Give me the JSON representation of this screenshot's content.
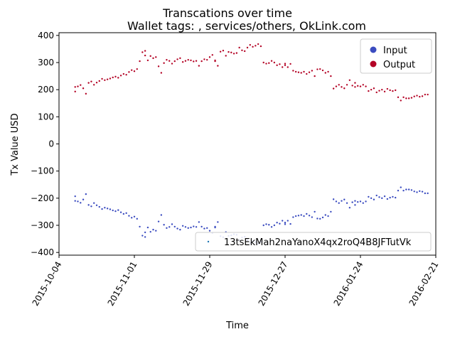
{
  "chart_data": {
    "type": "scatter",
    "title": "Transcations over time",
    "subtitle": "Wallet tags: , services/others, OkLink.com",
    "xlabel": "Time",
    "ylabel": "Tx Value USD",
    "xlim": [
      "2015-10-04",
      "2016-02-21"
    ],
    "ylim": [
      -410,
      410
    ],
    "x_ticks": [
      "2015-10-04",
      "2015-11-01",
      "2015-11-29",
      "2015-12-27",
      "2016-01-24",
      "2016-02-21"
    ],
    "y_ticks": [
      -400,
      -300,
      -200,
      -100,
      0,
      100,
      200,
      300,
      400
    ],
    "grid": false,
    "legend": {
      "placement": "top-right",
      "entries": [
        "Input",
        "Output"
      ]
    },
    "secondary_legend": {
      "placement": "bottom-right",
      "entries": [
        "13tsEkMah2naYanoX4qx2roQ4B8JFTutVk"
      ]
    },
    "colors": {
      "input": "#3b4cc0",
      "output": "#b40426"
    },
    "date_range": [
      "2015-10-10",
      "2016-02-18"
    ],
    "output_values": [
      210,
      193,
      212,
      217,
      205,
      185,
      225,
      230,
      218,
      226,
      232,
      240,
      235,
      238,
      241,
      245,
      248,
      244,
      252,
      258,
      255,
      265,
      272,
      268,
      276,
      305,
      338,
      343,
      326,
      308,
      324,
      316,
      320,
      286,
      262,
      298,
      310,
      306,
      296,
      305,
      312,
      316,
      302,
      306,
      310,
      308,
      304,
      306,
      288,
      305,
      312,
      310,
      320,
      328,
      305,
      308,
      288,
      340,
      344,
      325,
      339,
      337,
      333,
      335,
      355,
      345,
      342,
      355,
      365,
      358,
      362,
      368,
      360,
      300,
      296,
      298,
      306,
      300,
      290,
      294,
      283,
      290,
      296,
      283,
      295,
      270,
      266,
      264,
      262,
      266,
      258,
      264,
      270,
      250,
      275,
      276,
      271,
      262,
      266,
      250,
      204,
      212,
      218,
      210,
      205,
      218,
      235,
      215,
      210,
      225,
      214,
      212,
      218,
      212,
      195,
      200,
      205,
      190,
      196,
      200,
      193,
      203,
      198,
      195,
      198,
      172,
      160,
      172,
      168,
      168,
      170,
      175,
      178,
      174,
      176,
      182,
      182
    ]
  },
  "legend": {
    "input_label": "Input",
    "output_label": "Output"
  },
  "secondary_legend": {
    "address": "13tsEkMah2naYanoX4qx2roQ4B8JFTutVk"
  }
}
